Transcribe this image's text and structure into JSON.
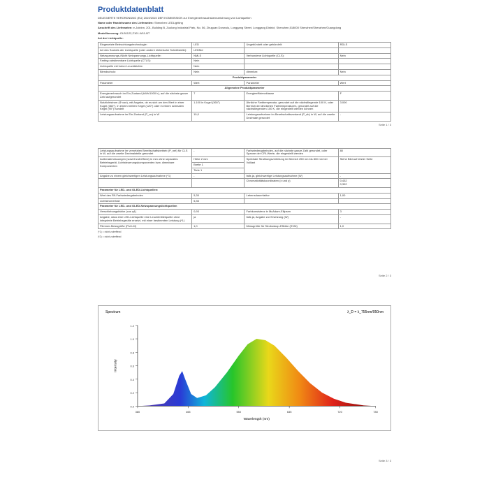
{
  "title": "Produktdatenblatt",
  "regulation": "DELEGIERTE VERORDNUNG (EU) 2019/2015 DER KOMMISSION zur Energieverbrauchskennzeichnung von Lichtquellen",
  "supplier_label": "Name oder Handelsname des Lieferanten:",
  "supplier": "Shenzhen LEDLighting",
  "addr_label": "Anschrift des Lieferanten:",
  "addr": "e-Joininn, 201, Building B, Zuolong Industrial Park, No. 56, Zhuguan Donwulu, Longgang Street, Longgang District, Shenzhen,518000 Shenzhen/Shenzhen/Guangdong",
  "model_label": "Modellkennung:",
  "model": "OLB1122,Z101-W11-BT",
  "art_label": "Art der Lichtquelle:",
  "t1": {
    "r1": {
      "a": "Eingesetzte Beleuchtungstechnologie:",
      "b": "LED",
      "c": "Ungebündelt oder gebündelt:",
      "d": "RDLS"
    },
    "r2": {
      "a": "Art des Sockels der Lichtquelle (oder andere elektrische Schnittstelle):",
      "b": "LEDMd",
      "c": "",
      "d": ""
    },
    "r3": {
      "a": "Netzspannungs-/Nicht Netzpannungs-Lichtquelle:",
      "b": "NMLS",
      "c": "Verbundene Lichtquelle (CLS):",
      "d": "Nein"
    },
    "r4": {
      "a": "Farbtyp abstimmbare Lichtquelle (CTLS):",
      "b": "Nein",
      "c": "",
      "d": ""
    },
    "r5": {
      "a": "Lichtquelle mit hoher Leuchtdichte:",
      "b": "Nein",
      "c": "",
      "d": ""
    },
    "r6": {
      "a": "Blendschutz:",
      "b": "Nein",
      "c": "dimmbar:",
      "d": "Nein"
    }
  },
  "prod_param_head": "Produktparameter",
  "wert_ein": {
    "a": "Parameter",
    "b": "Wert",
    "c": "Parameter",
    "d": "Wert"
  },
  "allg_head": "Allgemeine Produktparameter",
  "t2": {
    "r1": {
      "a": "Energieverbrauch im Ein-Zustand (kWh/1000 h), auf die nächste ganze Zahl aufgerundet",
      "b": "7",
      "c": "Energieeffizienzklasse",
      "d": "F"
    },
    "r2": {
      "a": "Nutzlichtstrom (&Phi; use), mit Angabe, ob es sich um den Wert in einer Kugel (360°), in einem breiten Kegel (120°) oder in einem schmalen Kegel (90°) handelt",
      "b": "1.100 in Kugel (360°)",
      "c": "Ähnliche Farbtemperatur, gerundet auf die nächstliegende 100 K, oder Bereich der ähnlichen Farbtemperaturen, gerundet auf die nächstliegenden 100 K, die eingestellt werden können",
      "d": "3.000"
    },
    "r3": {
      "a": "Leistungsaufnahme im Ein-Zustand (P_on) in W",
      "b": "10,0",
      "c": "Leistungsaufnahme im Bereitschaftszustand (P_sb) in W, auf die zweite Dezimale gerundet",
      "d": "-"
    }
  },
  "page1": "Seite 1 / 3",
  "t3": {
    "r1": {
      "a": "Leistungsaufnahme im vernetzten Bereitschaftsbetrieb (P_net) für CLS in W, auf die zweite Dezimalstelle gerundet",
      "b": "-",
      "c": "Farbwiedergabeindex, auf die nächste ganze Zahl gerundet, oder Spanne der CRI-Werte, die eingestellt werden",
      "d": "80"
    },
    "r2a": {
      "a": "Höhe",
      "b": "2 mm"
    },
    "r2b": {
      "a": "Breite",
      "b": "1"
    },
    "r2c": {
      "a": "Tiefe",
      "b": "1"
    },
    "r2_right1": "Spektrale Strahlungsverteilung im Bereich 250 nm bis 800 nm bei Volllast",
    "r2_right2": "Siehe Bild auf letzter Seite",
    "r2_left": "Außenabmessungen (soweit zutreffend) in mm ohne separates Betriebsgerät, Lichtsteuerungskomponenten bzw. dimmbare Komponenten",
    "r3": {
      "a": "Angabe zu einem gleichwertigen Leistungsaufnahme (*1)",
      "b": "-",
      "c": "falls ja, gleichwertige Leistungsaufnahme (W)",
      "d": "-"
    },
    "pv": {
      "a": "",
      "b": "",
      "c": "Chromatizitätskoordinaten (x und y)",
      "d1": "0,432",
      "d2": "0,392"
    }
  },
  "led_head": "Parameter für LED- und OLED-Lichtquellen:",
  "t4": {
    "r1": {
      "a": "Wert des R9-Farbwiedergabeindex",
      "b": "5,35",
      "c": "Lebensdauerfaktor",
      "d": "1,00"
    },
    "r2": {
      "a": "Lichtstromerhalt",
      "b": "5,35",
      "c": "",
      "d": ""
    }
  },
  "mains_head": "Parameter für LED- und OLED-Netzspannungslichtquellen",
  "t5": {
    "r1": {
      "a": "Verschiebungsfaktor (cos φ1)",
      "b": "0,93",
      "c": "Farbkonsistenz in McAdam-Ellipsen",
      "d": "3"
    },
    "r2": {
      "a": "Angabe, dass eine LED-Lichtquelle eine Leuchtmittelquelle ohne integrierte Betriebsgeräte ersetzt, mit einer bestimmten Leistung (*1)",
      "b": "ja",
      "c": "falls ja, Angabe zur Ersetzung (W)",
      "d": "-"
    },
    "r3": {
      "a": "Flimmer-Messgröße (Pst LM)",
      "b": "1,0",
      "c": "Messgröße für Stroboskop-Effekte (SVM)",
      "d": "1,0"
    }
  },
  "foot1": "(*1) = nicht zutreffend",
  "foot2": "(*2) = nicht zutreffend",
  "page2": "Seite 2 / 3",
  "page3": "Seite 3 / 3",
  "chart": {
    "title": "Spectrum",
    "sub": "λ_D = λ_755nm/050nm",
    "ylabel": "Intensity",
    "xlabel": "Wavelength (nm)",
    "xticks": [
      380,
      465,
      550,
      635,
      720,
      780
    ],
    "yticks": [
      0.0,
      0.2,
      0.4,
      0.6,
      0.8,
      1.0,
      1.2
    ],
    "ymax": 1.2,
    "stops": [
      {
        "o": 0.0,
        "c": "#5b3a9c"
      },
      {
        "o": 0.18,
        "c": "#2a3bd6"
      },
      {
        "o": 0.28,
        "c": "#0fb5d9"
      },
      {
        "o": 0.4,
        "c": "#27c52a"
      },
      {
        "o": 0.55,
        "c": "#e9d81a"
      },
      {
        "o": 0.68,
        "c": "#f08a14"
      },
      {
        "o": 0.82,
        "c": "#e0231a"
      },
      {
        "o": 1.0,
        "c": "#7a0e0e"
      }
    ],
    "curve": [
      [
        380,
        0.0
      ],
      [
        400,
        0.01
      ],
      [
        425,
        0.04
      ],
      [
        440,
        0.18
      ],
      [
        450,
        0.45
      ],
      [
        455,
        0.52
      ],
      [
        460,
        0.4
      ],
      [
        470,
        0.18
      ],
      [
        480,
        0.12
      ],
      [
        495,
        0.16
      ],
      [
        510,
        0.28
      ],
      [
        530,
        0.5
      ],
      [
        550,
        0.75
      ],
      [
        565,
        0.92
      ],
      [
        580,
        1.0
      ],
      [
        595,
        0.98
      ],
      [
        610,
        0.9
      ],
      [
        630,
        0.72
      ],
      [
        650,
        0.52
      ],
      [
        670,
        0.34
      ],
      [
        690,
        0.2
      ],
      [
        710,
        0.11
      ],
      [
        730,
        0.05
      ],
      [
        760,
        0.01
      ],
      [
        780,
        0.0
      ]
    ]
  }
}
